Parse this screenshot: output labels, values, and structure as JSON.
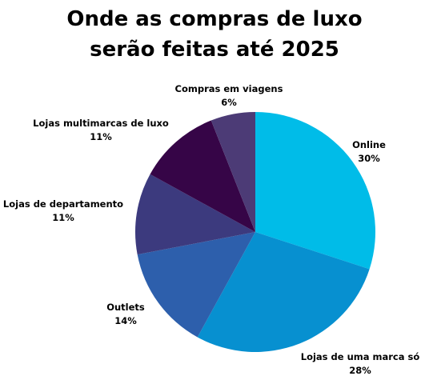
{
  "chart_data": {
    "type": "pie",
    "title": "Onde as compras de luxo serão feitas até 2025",
    "title_lines": [
      "Onde as compras de luxo",
      "serão feitas até 2025"
    ],
    "slices": [
      {
        "label": "Online",
        "value": 30,
        "value_label": "30%",
        "color": "#00bce8"
      },
      {
        "label": "Lojas de uma marca só",
        "value": 28,
        "value_label": "28%",
        "color": "#0790d0"
      },
      {
        "label": "Outlets",
        "value": 14,
        "value_label": "14%",
        "color": "#2d5fac"
      },
      {
        "label": "Lojas de departamento",
        "value": 11,
        "value_label": "11%",
        "color": "#3c3a7e"
      },
      {
        "label": "Lojas multimarcas de luxo",
        "value": 11,
        "value_label": "11%",
        "color": "#360547"
      },
      {
        "label": "Compras em viagens",
        "value": 6,
        "value_label": "6%",
        "color": "#4c3b76"
      }
    ],
    "start": "top",
    "direction": "clockwise",
    "legend": "none"
  }
}
